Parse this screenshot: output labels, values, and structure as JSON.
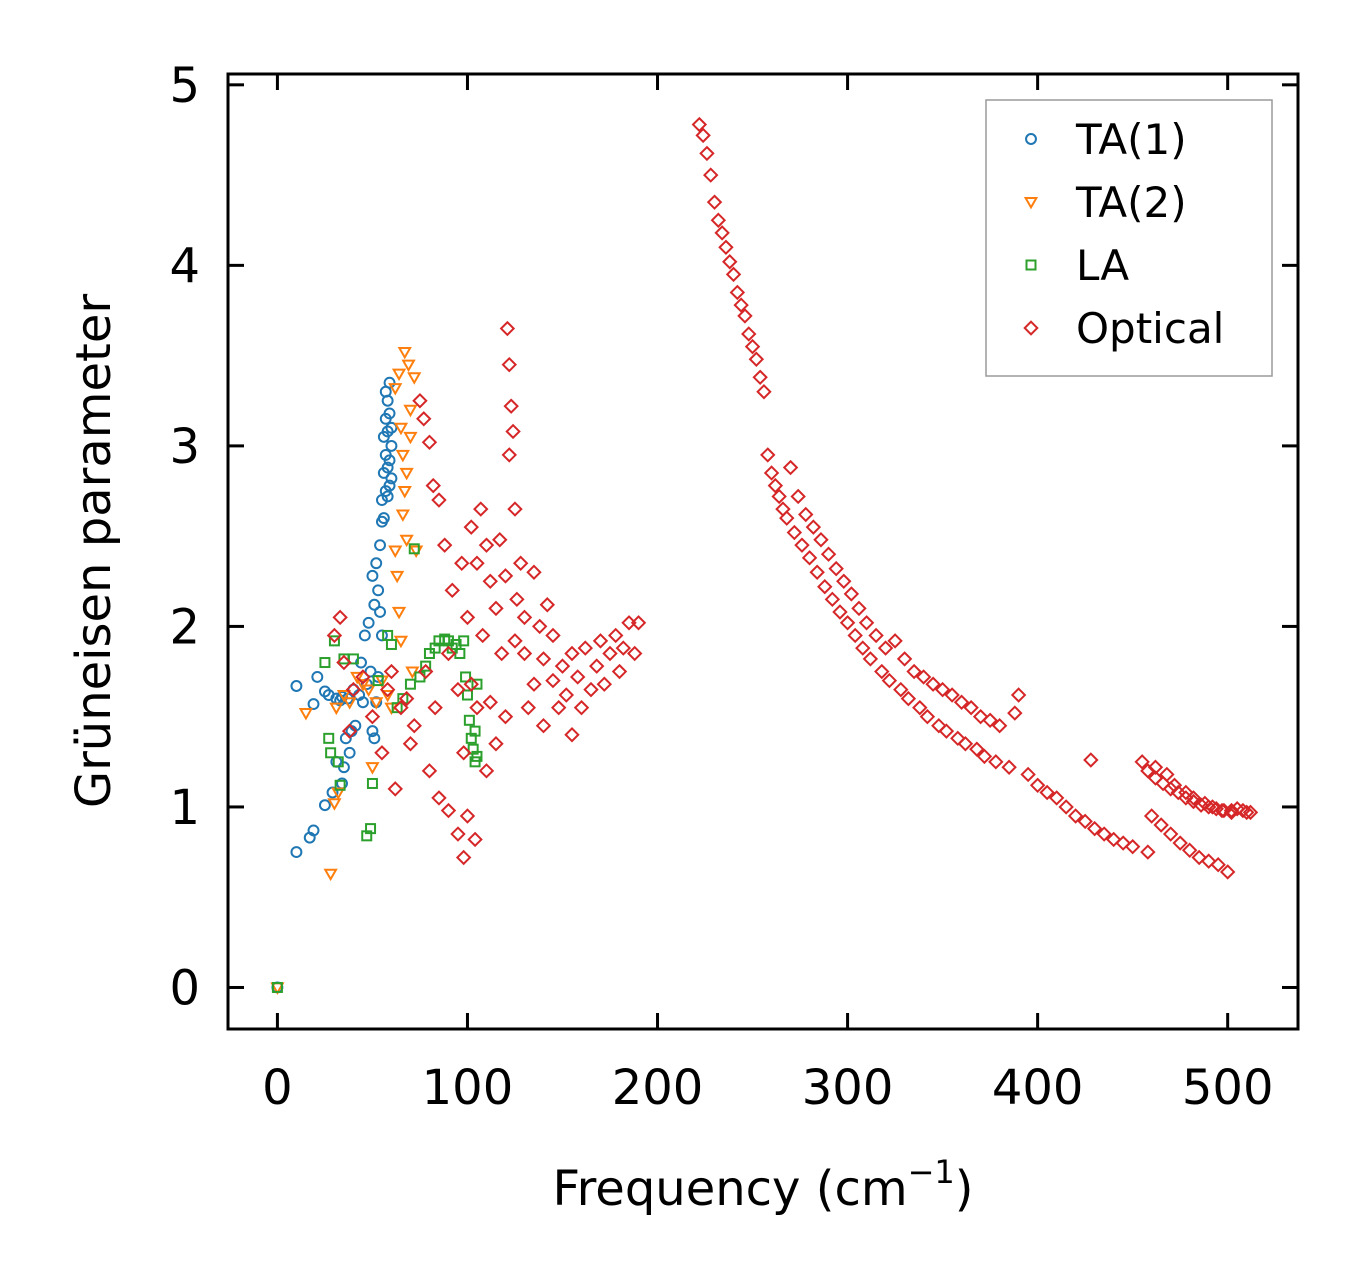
{
  "chart_data": {
    "type": "scatter",
    "title": "",
    "xlabel": "Frequency (cm",
    "xlabel_exponent": "−1",
    "xlabel_suffix": ")",
    "ylabel": "Grüneisen parameter",
    "xlim": [
      -26,
      537
    ],
    "ylim": [
      -0.23,
      5.06
    ],
    "xticks": [
      0,
      100,
      200,
      300,
      400,
      500
    ],
    "yticks": [
      0,
      1,
      2,
      3,
      4,
      5
    ],
    "xtick_labels": [
      "0",
      "100",
      "200",
      "300",
      "400",
      "500"
    ],
    "ytick_labels": [
      "0",
      "1",
      "2",
      "3",
      "4",
      "5"
    ],
    "grid": false,
    "legend_position": "top-right",
    "series": [
      {
        "name": "TA(1)",
        "marker": "circle",
        "color": "#1f77b4",
        "x": [
          0,
          10,
          10,
          17,
          19,
          19,
          21,
          25,
          25,
          27,
          29,
          31,
          31,
          33,
          34,
          34,
          35,
          36,
          37,
          38,
          39,
          40,
          41,
          43,
          44,
          45,
          46,
          47,
          48,
          49,
          50,
          50,
          51,
          51,
          52,
          52,
          53,
          53,
          54,
          54,
          55,
          55,
          55,
          56,
          56,
          56,
          57,
          57,
          57,
          57,
          58,
          58,
          58,
          58,
          59,
          59,
          59,
          59,
          60,
          60,
          60
        ],
        "y": [
          0,
          1.67,
          0.75,
          0.83,
          1.57,
          0.87,
          1.72,
          1.64,
          1.01,
          1.62,
          1.08,
          1.6,
          1.25,
          1.59,
          1.13,
          1.61,
          1.22,
          1.38,
          1.6,
          1.3,
          1.42,
          1.65,
          1.45,
          1.62,
          1.8,
          1.58,
          1.95,
          1.68,
          2.02,
          1.75,
          2.28,
          1.42,
          2.12,
          1.38,
          2.35,
          1.58,
          2.2,
          1.72,
          2.45,
          2.08,
          2.58,
          1.95,
          2.7,
          2.6,
          2.85,
          3.05,
          2.75,
          2.95,
          3.15,
          3.3,
          2.72,
          2.88,
          3.08,
          3.25,
          2.78,
          2.92,
          3.18,
          3.35,
          2.82,
          3.0,
          3.1
        ]
      },
      {
        "name": "TA(2)",
        "marker": "triangle-down",
        "color": "#ff7f0e",
        "x": [
          0,
          15,
          28,
          30,
          31,
          32,
          35,
          38,
          42,
          45,
          48,
          50,
          52,
          55,
          58,
          60,
          62,
          62,
          63,
          64,
          64,
          65,
          65,
          66,
          66,
          67,
          67,
          68,
          68,
          69,
          70,
          70,
          71,
          72,
          73
        ],
        "y": [
          0,
          1.52,
          0.63,
          1.02,
          1.55,
          1.08,
          1.62,
          1.58,
          1.72,
          1.68,
          1.65,
          1.22,
          1.58,
          1.7,
          1.62,
          1.55,
          2.42,
          3.32,
          2.28,
          2.08,
          3.4,
          1.92,
          3.1,
          2.62,
          2.95,
          2.75,
          3.52,
          2.48,
          2.85,
          3.45,
          3.2,
          3.05,
          1.75,
          3.38,
          2.42
        ]
      },
      {
        "name": "LA",
        "marker": "square",
        "color": "#2ca02c",
        "x": [
          0,
          25,
          27,
          28,
          30,
          32,
          33,
          35,
          40,
          47,
          49,
          50,
          53,
          58,
          60,
          63,
          66,
          70,
          72,
          75,
          78,
          80,
          83,
          85,
          88,
          90,
          92,
          94,
          96,
          98,
          99,
          100,
          101,
          102,
          103,
          104,
          104,
          105,
          105
        ],
        "y": [
          0,
          1.8,
          1.38,
          1.3,
          1.92,
          1.25,
          1.12,
          1.82,
          1.82,
          0.84,
          0.88,
          1.13,
          1.7,
          1.95,
          1.9,
          1.55,
          1.6,
          1.68,
          2.43,
          1.72,
          1.78,
          1.85,
          1.88,
          1.92,
          1.93,
          1.92,
          1.88,
          1.9,
          1.85,
          1.92,
          1.72,
          1.62,
          1.48,
          1.38,
          1.32,
          1.25,
          1.42,
          1.28,
          1.68
        ]
      },
      {
        "name": "Optical",
        "marker": "diamond",
        "color": "#d62728",
        "x": [
          30,
          33,
          35,
          38,
          40,
          45,
          50,
          55,
          58,
          60,
          62,
          65,
          68,
          70,
          72,
          75,
          77,
          78,
          80,
          80,
          82,
          83,
          85,
          85,
          88,
          90,
          90,
          92,
          95,
          95,
          97,
          98,
          98,
          100,
          100,
          102,
          102,
          104,
          105,
          105,
          107,
          108,
          110,
          110,
          112,
          112,
          115,
          115,
          117,
          118,
          120,
          120,
          121,
          122,
          122,
          123,
          124,
          125,
          125,
          126,
          128,
          130,
          130,
          132,
          135,
          135,
          138,
          140,
          140,
          142,
          145,
          145,
          148,
          150,
          152,
          155,
          155,
          158,
          160,
          162,
          165,
          168,
          170,
          172,
          175,
          178,
          180,
          182,
          185,
          188,
          190,
          222,
          224,
          226,
          228,
          230,
          232,
          234,
          236,
          238,
          240,
          242,
          244,
          246,
          248,
          250,
          252,
          254,
          256,
          258,
          260,
          262,
          264,
          266,
          268,
          270,
          272,
          274,
          276,
          278,
          280,
          282,
          284,
          286,
          288,
          290,
          292,
          294,
          296,
          298,
          300,
          302,
          304,
          306,
          308,
          310,
          312,
          315,
          318,
          320,
          322,
          325,
          328,
          330,
          332,
          335,
          338,
          340,
          342,
          345,
          348,
          350,
          352,
          355,
          358,
          360,
          362,
          365,
          368,
          370,
          372,
          375,
          378,
          380,
          385,
          388,
          390,
          395,
          400,
          405,
          410,
          415,
          420,
          425,
          428,
          430,
          435,
          440,
          445,
          450,
          455,
          458,
          460,
          462,
          465,
          468,
          470,
          472,
          475,
          478,
          480,
          482,
          485,
          488,
          490,
          492,
          495,
          497,
          500,
          502,
          505,
          508,
          510,
          512,
          458,
          462,
          466,
          470,
          474,
          478,
          482,
          486,
          490,
          494,
          498,
          502
        ],
        "y": [
          1.95,
          2.05,
          1.8,
          1.42,
          1.65,
          1.72,
          1.5,
          1.3,
          1.65,
          1.75,
          1.1,
          1.55,
          1.6,
          1.35,
          1.45,
          3.25,
          3.15,
          1.75,
          3.02,
          1.2,
          2.78,
          1.55,
          2.7,
          1.05,
          2.45,
          1.85,
          0.98,
          2.2,
          1.65,
          0.85,
          2.35,
          0.72,
          1.3,
          2.05,
          0.95,
          2.55,
          1.68,
          0.82,
          2.35,
          1.55,
          2.65,
          1.95,
          2.45,
          1.2,
          2.25,
          1.58,
          2.1,
          1.35,
          2.48,
          1.85,
          2.28,
          1.5,
          3.65,
          3.45,
          2.95,
          3.22,
          3.08,
          2.65,
          1.92,
          2.15,
          2.35,
          1.85,
          2.05,
          1.55,
          2.3,
          1.68,
          2.0,
          1.82,
          1.45,
          2.12,
          1.7,
          1.95,
          1.55,
          1.78,
          1.62,
          1.85,
          1.4,
          1.72,
          1.55,
          1.88,
          1.65,
          1.78,
          1.92,
          1.68,
          1.85,
          1.95,
          1.75,
          1.88,
          2.02,
          1.85,
          2.02,
          4.78,
          4.72,
          4.62,
          4.5,
          4.35,
          4.25,
          4.18,
          4.1,
          4.02,
          3.95,
          3.85,
          3.78,
          3.72,
          3.62,
          3.55,
          3.48,
          3.38,
          3.3,
          2.95,
          2.85,
          2.78,
          2.72,
          2.65,
          2.6,
          2.88,
          2.52,
          2.72,
          2.45,
          2.62,
          2.38,
          2.55,
          2.3,
          2.48,
          2.22,
          2.4,
          2.15,
          2.32,
          2.08,
          2.25,
          2.02,
          2.18,
          1.95,
          2.1,
          1.88,
          2.02,
          1.82,
          1.95,
          1.75,
          1.88,
          1.7,
          1.92,
          1.65,
          1.82,
          1.6,
          1.75,
          1.55,
          1.72,
          1.5,
          1.68,
          1.45,
          1.65,
          1.42,
          1.62,
          1.38,
          1.58,
          1.35,
          1.55,
          1.32,
          1.5,
          1.28,
          1.48,
          1.25,
          1.45,
          1.22,
          1.52,
          1.62,
          1.18,
          1.12,
          1.08,
          1.05,
          1.0,
          0.95,
          0.92,
          1.26,
          0.88,
          0.85,
          0.82,
          0.8,
          0.78,
          1.25,
          0.75,
          0.95,
          1.22,
          0.9,
          1.18,
          0.85,
          1.12,
          0.8,
          1.08,
          0.76,
          1.05,
          0.72,
          1.02,
          0.7,
          1.0,
          0.68,
          0.98,
          0.64,
          0.98,
          0.99,
          0.98,
          0.97,
          0.97,
          1.2,
          1.16,
          1.13,
          1.1,
          1.08,
          1.05,
          1.03,
          1.01,
          1.0,
          0.99,
          0.98,
          0.97
        ]
      }
    ]
  }
}
